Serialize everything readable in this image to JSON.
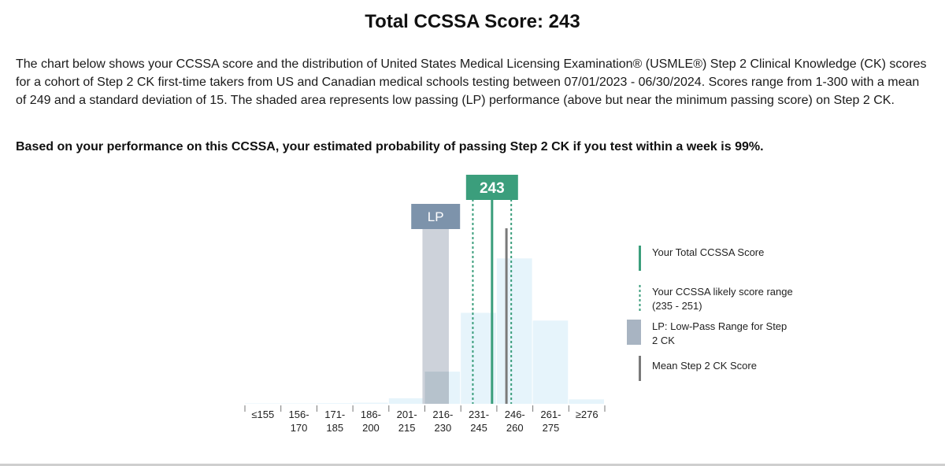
{
  "header": {
    "title": "Total CCSSA Score: 243"
  },
  "description": "The chart below shows your CCSSA score and the distribution of United States Medical Licensing Examination® (USMLE®) Step 2 Clinical Knowledge (CK) scores for a cohort of Step 2 CK first-time takers from US and Canadian medical schools testing between 07/01/2023 - 06/30/2024. Scores range from 1-300 with a mean of 249 and a standard deviation of 15. The shaded area represents low passing (LP) performance (above but near the minimum passing score) on Step 2 CK.",
  "probability_statement": "Based on your performance on this CCSSA, your estimated probability of passing Step 2 CK if you test within a week is 99%.",
  "chart_data": {
    "type": "bar",
    "title": "Total CCSSA Score: 243",
    "categories": [
      [
        "≤155",
        ""
      ],
      [
        "156-",
        "170"
      ],
      [
        "171-",
        "185"
      ],
      [
        "186-",
        "200"
      ],
      [
        "201-",
        "215"
      ],
      [
        "216-",
        "230"
      ],
      [
        "231-",
        "245"
      ],
      [
        "246-",
        "260"
      ],
      [
        "261-",
        "275"
      ],
      [
        "≥276",
        ""
      ]
    ],
    "values": [
      0.2,
      0.2,
      0.3,
      0.5,
      2.5,
      14.5,
      41,
      65.5,
      37.5,
      2.0
    ],
    "ylim": [
      0,
      100
    ],
    "score_axis": [
      140,
      290
    ],
    "your_score": 243,
    "your_score_label": "243",
    "likely_range": [
      235,
      251
    ],
    "mean_score": 249,
    "low_pass_range": [
      214,
      225
    ],
    "low_pass_label": "LP",
    "xlabel": "",
    "ylabel": "",
    "grid": false
  },
  "legend": {
    "items": [
      {
        "key": "score",
        "label": "Your Total CCSSA Score"
      },
      {
        "key": "range",
        "label": "Your CCSSA likely score range (235 - 251)"
      },
      {
        "key": "lp",
        "label": "LP: Low-Pass Range for Step 2 CK"
      },
      {
        "key": "mean",
        "label": "Mean Step 2 CK Score"
      }
    ]
  },
  "colors": {
    "bar_fill": "#e6f4fb",
    "lp_fill": "#c4cad4",
    "lp_overlap_fill": "#b6c2cc",
    "lp_badge": "#7d93ab",
    "score_green": "#3b9e7c",
    "mean_gray": "#7a7a7a",
    "axis_tick": "#777777"
  }
}
